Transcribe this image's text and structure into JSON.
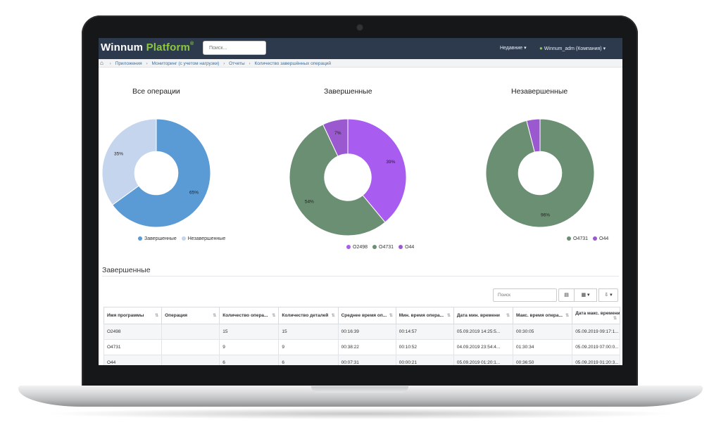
{
  "navbar": {
    "logo_main": "Winnum",
    "logo_accent": "Platform",
    "logo_mark": "®",
    "search_placeholder": "Поиск...",
    "recent_label": "Недавние ▾",
    "user_label": "Winnum_adm (Компания) ▾"
  },
  "breadcrumb": [
    "Приложения",
    "Мониторинг (с учетом нагрузки)",
    "Отчеты",
    "Количество завершённых операций"
  ],
  "colors": {
    "navbar": "#2d3a4d",
    "accent_green": "#8cc83c",
    "completed": "#5b9bd5",
    "incomplete": "#c5d5ee",
    "O2498": "#a95cf0",
    "O4731": "#6b8f72",
    "O44": "#9b59d0"
  },
  "chart_data": [
    {
      "type": "pie",
      "title": "Все операции",
      "categories": [
        "Завершенные",
        "Незавершенные"
      ],
      "values": [
        65,
        35
      ],
      "value_labels": [
        "65%",
        "35%"
      ],
      "legend": [
        "Завершенные",
        "Незавершенные"
      ]
    },
    {
      "type": "pie",
      "title": "Завершенные",
      "categories": [
        "O2498",
        "O4731",
        "O44"
      ],
      "values": [
        39,
        54,
        7
      ],
      "value_labels": [
        "39%",
        "54%",
        "7%"
      ],
      "legend": [
        "O2498",
        "O4731",
        "O44"
      ]
    },
    {
      "type": "pie",
      "title": "Незавершенные",
      "categories": [
        "O4731",
        "O44"
      ],
      "values": [
        96,
        4
      ],
      "value_labels": [
        "96%",
        ""
      ],
      "legend": [
        "O4731",
        "O44"
      ]
    }
  ],
  "table_section": {
    "title": "Завершенные",
    "search_placeholder": "Поиск",
    "columns_button": "▦ ▾",
    "export_button": "⇩ ▾",
    "view_button": "▤",
    "headers": [
      "Имя программы",
      "Операция",
      "Количество опера...",
      "Количество деталей",
      "Среднее время оп...",
      "Мин. время опера...",
      "Дата мин. времени",
      "Макс. время опера...",
      "Дата макс. времени"
    ],
    "rows": [
      [
        "O2498",
        "",
        "15",
        "15",
        "00:16:39",
        "00:14:57",
        "05.09.2019 14:25:5...",
        "00:30:05",
        "05.09.2019 09:17:1..."
      ],
      [
        "O4731",
        "",
        "9",
        "9",
        "00:38:22",
        "00:10:52",
        "04.09.2019 23:54:4...",
        "01:30:34",
        "05.09.2019 07:00:0..."
      ],
      [
        "O44",
        "",
        "6",
        "6",
        "00:07:31",
        "00:00:21",
        "05.09.2019 01:20:1...",
        "00:36:50",
        "05.09.2019 01:20:3..."
      ]
    ]
  }
}
